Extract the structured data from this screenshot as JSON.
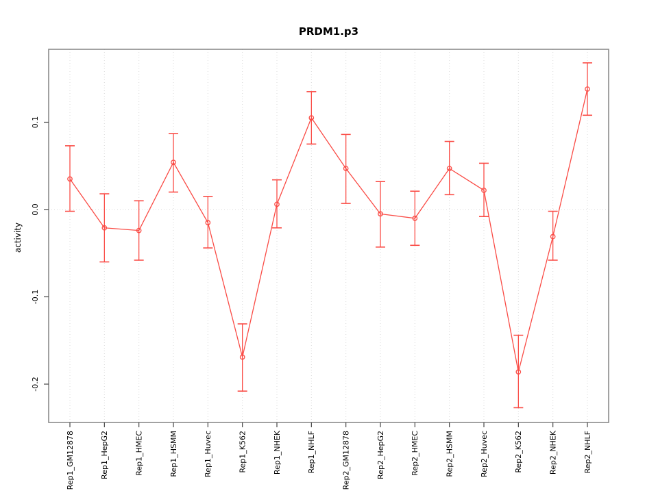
{
  "chart_data": {
    "type": "line",
    "title": "PRDM1.p3",
    "xlabel": "",
    "ylabel": "activity",
    "categories": [
      "Rep1_GM12878",
      "Rep1_HepG2",
      "Rep1_HMEC",
      "Rep1_HSMM",
      "Rep1_Huvec",
      "Rep1_K562",
      "Rep1_NHEK",
      "Rep1_NHLF",
      "Rep2_GM12878",
      "Rep2_HepG2",
      "Rep2_HMEC",
      "Rep2_HSMM",
      "Rep2_Huvec",
      "Rep2_K562",
      "Rep2_NHEK",
      "Rep2_NHLF"
    ],
    "series": [
      {
        "name": "activity",
        "marker": "open-circle",
        "color": "#fa4b45",
        "values": [
          0.035,
          -0.021,
          -0.024,
          0.054,
          -0.015,
          -0.169,
          0.006,
          0.105,
          0.047,
          -0.005,
          -0.01,
          0.047,
          0.022,
          -0.186,
          -0.031,
          0.138
        ],
        "error_low": [
          -0.002,
          -0.06,
          -0.058,
          0.02,
          -0.044,
          -0.208,
          -0.021,
          0.075,
          0.007,
          -0.043,
          -0.041,
          0.017,
          -0.008,
          -0.227,
          -0.058,
          0.108
        ],
        "error_high": [
          0.073,
          0.018,
          0.01,
          0.087,
          0.015,
          -0.131,
          0.034,
          0.135,
          0.086,
          0.032,
          0.021,
          0.078,
          0.053,
          -0.144,
          -0.002,
          0.168
        ]
      }
    ],
    "ylim": [
      -0.244,
      0.184
    ],
    "yticks": [
      0.1,
      0.0,
      -0.1,
      -0.2
    ],
    "ytick_labels": [
      "0.1",
      "0.0",
      "-0.1",
      "-0.2"
    ],
    "grid": {
      "vertical_dotted_per_category": true,
      "horizontal_dotted_at_zero": true,
      "color": "#d9d9d9"
    },
    "frame_color": "#8a8a8a",
    "tick_color": "#444444",
    "text_color": "#000000",
    "legend": "none"
  }
}
